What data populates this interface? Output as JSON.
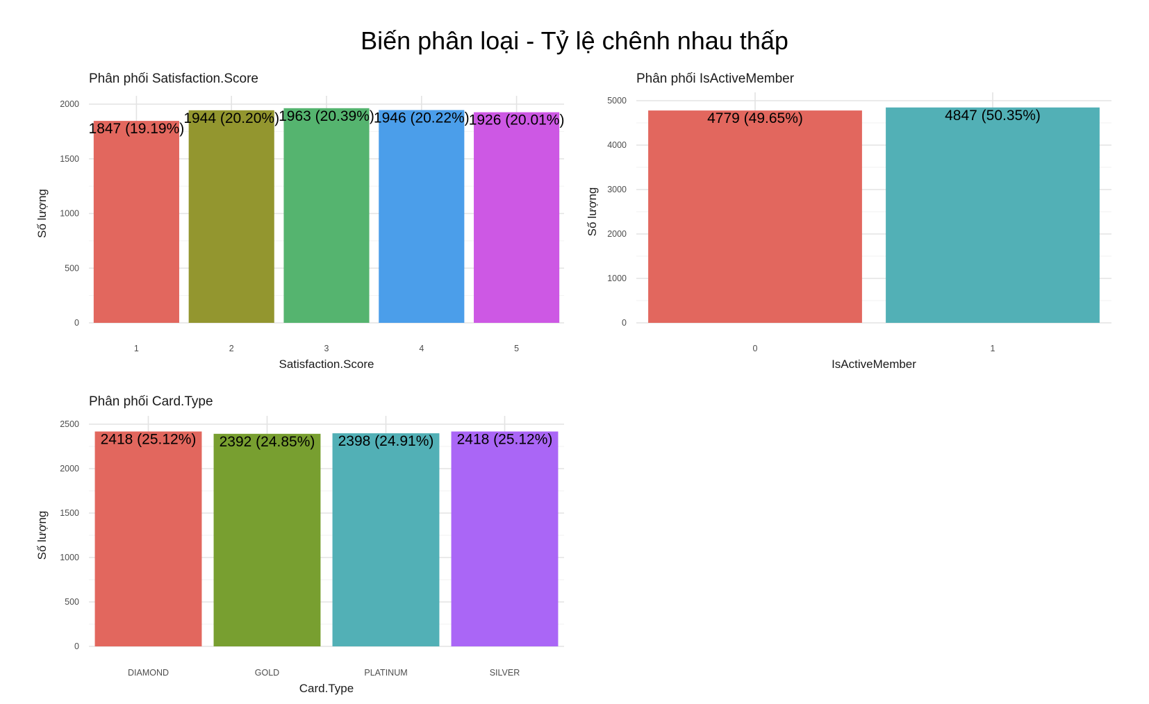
{
  "title": "Biến phân loại - Tỷ lệ chênh nhau thấp",
  "chart_data": [
    {
      "type": "bar",
      "title": "Phân phối Satisfaction.Score",
      "xlabel": "Satisfaction.Score",
      "ylabel": "Số lượng",
      "categories": [
        "1",
        "2",
        "3",
        "4",
        "5"
      ],
      "values": [
        1847,
        1944,
        1963,
        1946,
        1926
      ],
      "labels": [
        "1847 (19.19%)",
        "1944 (20.20%)",
        "1963 (20.39%)",
        "1946 (20.22%)",
        "1926 (20.01%)"
      ],
      "colors": [
        "#E2675E",
        "#93962F",
        "#55B46F",
        "#4B9EEA",
        "#CD58E4"
      ],
      "ylim": [
        0,
        2000
      ],
      "yticks": [
        0,
        500,
        1000,
        1500,
        2000
      ],
      "legend": "none",
      "grid": true
    },
    {
      "type": "bar",
      "title": "Phân phối IsActiveMember",
      "xlabel": "IsActiveMember",
      "ylabel": "Số lượng",
      "categories": [
        "0",
        "1"
      ],
      "values": [
        4779,
        4847
      ],
      "labels": [
        "4779 (49.65%)",
        "4847 (50.35%)"
      ],
      "colors": [
        "#E2675E",
        "#52B0B6"
      ],
      "ylim": [
        0,
        5000
      ],
      "yticks": [
        0,
        1000,
        2000,
        3000,
        4000,
        5000
      ],
      "legend": "none",
      "grid": true
    },
    {
      "type": "bar",
      "title": "Phân phối Card.Type",
      "xlabel": "Card.Type",
      "ylabel": "Số lượng",
      "categories": [
        "DIAMOND",
        "GOLD",
        "PLATINUM",
        "SILVER"
      ],
      "values": [
        2418,
        2392,
        2398,
        2418
      ],
      "labels": [
        "2418 (25.12%)",
        "2392 (24.85%)",
        "2398 (24.91%)",
        "2418 (25.12%)"
      ],
      "colors": [
        "#E2675E",
        "#789F30",
        "#52B0B6",
        "#AA66F6"
      ],
      "ylim": [
        0,
        2500
      ],
      "yticks": [
        0,
        500,
        1000,
        1500,
        2000,
        2500
      ],
      "legend": "none",
      "grid": true
    }
  ]
}
